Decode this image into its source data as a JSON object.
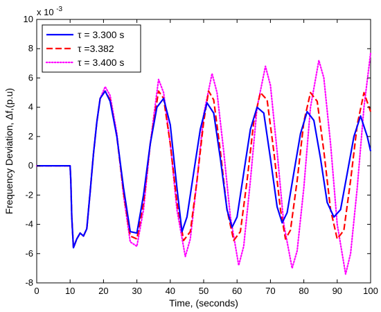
{
  "chart_data": {
    "type": "line",
    "xlabel": "Time, (seconds)",
    "ylabel": "Frequency Deviation, Δf,(p.u)",
    "y_multiplier": "x 10",
    "y_multiplier_exp": "-3",
    "xlim": [
      0,
      100
    ],
    "ylim": [
      -8,
      10
    ],
    "xticks": [
      0,
      10,
      20,
      30,
      40,
      50,
      60,
      70,
      80,
      90,
      100
    ],
    "yticks": [
      -8,
      -6,
      -4,
      -2,
      0,
      2,
      4,
      6,
      8,
      10
    ],
    "grid": false,
    "legend_position": "top-left",
    "series": [
      {
        "name": "τ = 3.300 s",
        "color": "#0000ff",
        "dash": "solid",
        "x": [
          0,
          10,
          10.2,
          10.5,
          11,
          12,
          13,
          14,
          15,
          16,
          17,
          18,
          19,
          20.5,
          22,
          24,
          26,
          28,
          30,
          32,
          34,
          36,
          38,
          40,
          42,
          43.5,
          45,
          47,
          49,
          51,
          53,
          55,
          57,
          58.5,
          60,
          62,
          64,
          66,
          68,
          70,
          72,
          73.5,
          75,
          77,
          79,
          81,
          83,
          85,
          87,
          89,
          91,
          93,
          95,
          97,
          99,
          100
        ],
        "y": [
          0,
          0,
          -1.0,
          -3.5,
          -5.6,
          -5.0,
          -4.6,
          -4.8,
          -4.3,
          -1.8,
          0.8,
          3.0,
          4.6,
          5.1,
          4.4,
          2.0,
          -1.5,
          -4.5,
          -4.6,
          -2.0,
          1.5,
          4.0,
          4.6,
          2.8,
          -1.5,
          -4.5,
          -3.5,
          -0.5,
          2.5,
          4.3,
          3.6,
          0.5,
          -3.0,
          -4.2,
          -3.5,
          -0.5,
          2.5,
          4.0,
          3.6,
          0.5,
          -2.8,
          -3.9,
          -3.2,
          -0.5,
          2.2,
          3.7,
          3.1,
          0.5,
          -2.5,
          -3.5,
          -3.0,
          -0.5,
          2.0,
          3.4,
          2.0,
          1.0
        ]
      },
      {
        "name": "τ =3.382",
        "color": "#ff0000",
        "dash": "dashed",
        "x": [
          0,
          10,
          10.2,
          10.5,
          11,
          12,
          13,
          14,
          15,
          16,
          17,
          18,
          19,
          20.5,
          22,
          24,
          26,
          28,
          30,
          32,
          34,
          36.5,
          38,
          40,
          42,
          44,
          46,
          48,
          50,
          51.5,
          53,
          55,
          57,
          59,
          61,
          63,
          65,
          67,
          69,
          71,
          73,
          74.5,
          76,
          78,
          80,
          82,
          84,
          86,
          88,
          90,
          92,
          94,
          96,
          98,
          100
        ],
        "y": [
          0,
          0,
          -1.0,
          -3.5,
          -5.6,
          -5.0,
          -4.6,
          -4.8,
          -4.3,
          -1.8,
          0.8,
          3.0,
          4.6,
          5.1,
          4.5,
          2.0,
          -1.8,
          -4.8,
          -5.0,
          -2.5,
          1.5,
          5.1,
          4.6,
          1.5,
          -2.5,
          -5.1,
          -4.5,
          -1.0,
          3.0,
          5.1,
          4.5,
          1.0,
          -3.0,
          -5.1,
          -4.5,
          -1.0,
          3.0,
          5.0,
          4.5,
          1.0,
          -3.0,
          -5.0,
          -4.4,
          -1.0,
          3.0,
          5.0,
          4.4,
          1.0,
          -3.0,
          -5.0,
          -4.4,
          -1.0,
          2.8,
          5.0,
          3.7
        ]
      },
      {
        "name": "τ = 3.400 s",
        "color": "#ff00ff",
        "dash": "dotted",
        "x": [
          0,
          10,
          10.2,
          10.5,
          11,
          12,
          13,
          14,
          15,
          16,
          17,
          18,
          19,
          20.5,
          22,
          24,
          26,
          28,
          30,
          32,
          34,
          36.5,
          38,
          40,
          42,
          44.5,
          46,
          48,
          50,
          52.5,
          54,
          56,
          58,
          60.5,
          62,
          64,
          66,
          68.5,
          70,
          72,
          74,
          76.5,
          78,
          80,
          82,
          84.5,
          86,
          88,
          90,
          92.5,
          94,
          96,
          98,
          100
        ],
        "y": [
          0,
          0,
          -1.0,
          -3.5,
          -5.6,
          -5.0,
          -4.6,
          -4.8,
          -4.3,
          -1.8,
          0.8,
          3.0,
          4.6,
          5.4,
          4.8,
          2.2,
          -2.0,
          -5.2,
          -5.5,
          -3.0,
          1.5,
          5.9,
          5.0,
          1.5,
          -3.0,
          -6.2,
          -5.0,
          -1.0,
          3.5,
          6.3,
          5.0,
          1.0,
          -3.5,
          -6.8,
          -5.5,
          -1.0,
          4.0,
          6.8,
          5.5,
          1.0,
          -4.0,
          -7.0,
          -5.8,
          -1.5,
          4.0,
          7.2,
          6.0,
          1.5,
          -4.0,
          -7.4,
          -6.0,
          -1.5,
          4.0,
          7.7
        ]
      }
    ]
  }
}
